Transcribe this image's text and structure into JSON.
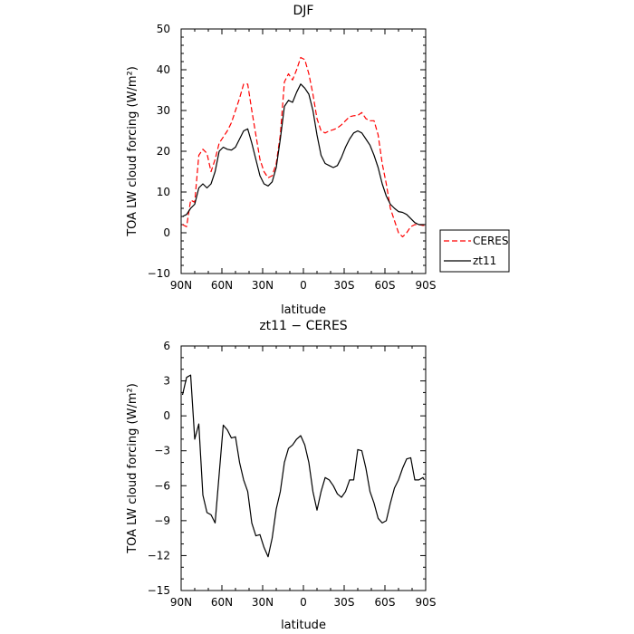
{
  "colors": {
    "ceres": "#ff0000",
    "zt11": "#000000",
    "axes": "#000000",
    "background": "#ffffff"
  },
  "chart_data": [
    {
      "type": "line",
      "title": "DJF",
      "xlabel": "latitude",
      "ylabel": "TOA LW cloud forcing (W/m²)",
      "x_ticks": [
        90,
        60,
        30,
        0,
        -30,
        -60,
        -90
      ],
      "x_ticklabels": [
        "90N",
        "60N",
        "30N",
        "0",
        "30S",
        "60S",
        "90S"
      ],
      "xlim": [
        90,
        -90
      ],
      "ylim": [
        -10,
        50
      ],
      "y_ticks": [
        -10,
        0,
        10,
        20,
        30,
        40,
        50
      ],
      "y_ticklabels": [
        "−10",
        "0",
        "10",
        "20",
        "30",
        "40",
        "50"
      ],
      "legend": "outside-right-bottom",
      "grid": false,
      "series": [
        {
          "name": "CERES",
          "style": "dashed",
          "x": [
            89,
            86,
            83,
            80,
            77,
            74,
            71,
            68,
            65,
            62,
            59,
            56,
            53,
            50,
            47,
            44,
            41,
            38,
            35,
            32,
            29,
            26,
            23,
            20,
            17,
            14,
            11,
            8,
            5,
            2,
            -1,
            -4,
            -7,
            -10,
            -13,
            -16,
            -19,
            -22,
            -25,
            -28,
            -31,
            -34,
            -37,
            -40,
            -43,
            -46,
            -49,
            -52,
            -55,
            -58,
            -61,
            -64,
            -67,
            -70,
            -73,
            -76,
            -79,
            -82,
            -85,
            -88,
            -89
          ],
          "y": [
            2,
            1.5,
            8,
            7.5,
            19,
            20.5,
            19.5,
            15,
            18,
            22,
            23.5,
            25,
            27,
            30,
            33,
            36.5,
            36.5,
            30,
            24,
            18,
            15,
            13.5,
            14,
            17,
            24,
            37,
            39,
            37.5,
            40,
            43,
            42.5,
            39,
            34,
            28,
            25,
            24.5,
            25,
            25.3,
            25.7,
            26.5,
            27.5,
            28.5,
            28.7,
            28.8,
            29.5,
            28,
            27.5,
            27.5,
            24,
            17,
            12,
            6,
            3,
            0,
            -1,
            0,
            1.5,
            2,
            2,
            1.8,
            1.8
          ]
        },
        {
          "name": "zt11",
          "style": "solid",
          "x": [
            89,
            86,
            83,
            80,
            77,
            74,
            71,
            68,
            65,
            62,
            59,
            56,
            53,
            50,
            47,
            44,
            41,
            38,
            35,
            32,
            29,
            26,
            23,
            20,
            17,
            14,
            11,
            8,
            5,
            2,
            -1,
            -4,
            -7,
            -10,
            -13,
            -16,
            -19,
            -22,
            -25,
            -28,
            -31,
            -34,
            -37,
            -40,
            -43,
            -46,
            -49,
            -52,
            -55,
            -58,
            -61,
            -64,
            -67,
            -70,
            -73,
            -76,
            -79,
            -82,
            -85,
            -88,
            -89
          ],
          "y": [
            4,
            4.5,
            6,
            7,
            11,
            12,
            11,
            12,
            15,
            20,
            21,
            20.5,
            20.3,
            21,
            23,
            25,
            25.5,
            22,
            18,
            14,
            12,
            11.5,
            12.5,
            16,
            23,
            31,
            32.5,
            32,
            34.5,
            36.5,
            35.5,
            34,
            30,
            24,
            19,
            17,
            16.5,
            16,
            16.5,
            18.5,
            21,
            23,
            24.5,
            25,
            24.5,
            23,
            21.5,
            19,
            16,
            12,
            9,
            7,
            6,
            5.2,
            5,
            4.5,
            3.5,
            2.5,
            2,
            2,
            2
          ]
        }
      ]
    },
    {
      "type": "line",
      "title": "zt11 − CERES",
      "xlabel": "latitude",
      "ylabel": "TOA LW cloud forcing (W/m²)",
      "x_ticks": [
        90,
        60,
        30,
        0,
        -30,
        -60,
        -90
      ],
      "x_ticklabels": [
        "90N",
        "60N",
        "30N",
        "0",
        "30S",
        "60S",
        "90S"
      ],
      "xlim": [
        90,
        -90
      ],
      "ylim": [
        -15,
        6
      ],
      "y_ticks": [
        -15,
        -12,
        -9,
        -6,
        -3,
        0,
        3,
        6
      ],
      "y_ticklabels": [
        "−15",
        "−12",
        "−9",
        "−6",
        "−3",
        "0",
        "3",
        "6"
      ],
      "grid": false,
      "series": [
        {
          "name": "zt11",
          "style": "solid",
          "x": [
            89,
            86,
            83,
            80,
            77,
            74,
            71,
            68,
            65,
            62,
            59,
            56,
            53,
            50,
            47,
            44,
            41,
            38,
            35,
            32,
            29,
            26,
            23,
            20,
            17,
            14,
            11,
            8,
            5,
            2,
            -1,
            -4,
            -7,
            -10,
            -13,
            -16,
            -19,
            -22,
            -25,
            -28,
            -31,
            -34,
            -37,
            -40,
            -43,
            -46,
            -49,
            -52,
            -55,
            -58,
            -61,
            -64,
            -67,
            -70,
            -73,
            -76,
            -79,
            -82,
            -85,
            -88,
            -89
          ],
          "y": [
            1.8,
            3.3,
            3.5,
            -2,
            -0.7,
            -6.8,
            -8.3,
            -8.5,
            -9.2,
            -5,
            -0.8,
            -1.2,
            -1.9,
            -1.8,
            -4,
            -5.5,
            -6.5,
            -9.2,
            -10.3,
            -10.2,
            -11.3,
            -12.1,
            -10.5,
            -8,
            -6.5,
            -4,
            -2.8,
            -2.5,
            -2,
            -1.7,
            -2.5,
            -4,
            -6.5,
            -8.1,
            -6.5,
            -5.3,
            -5.5,
            -6,
            -6.7,
            -7,
            -6.5,
            -5.5,
            -5.5,
            -2.9,
            -3,
            -4.5,
            -6.5,
            -7.5,
            -8.8,
            -9.2,
            -9,
            -7.5,
            -6.2,
            -5.5,
            -4.5,
            -3.7,
            -3.6,
            -5.5,
            -5.5,
            -5.3,
            -5.5
          ]
        }
      ]
    }
  ]
}
